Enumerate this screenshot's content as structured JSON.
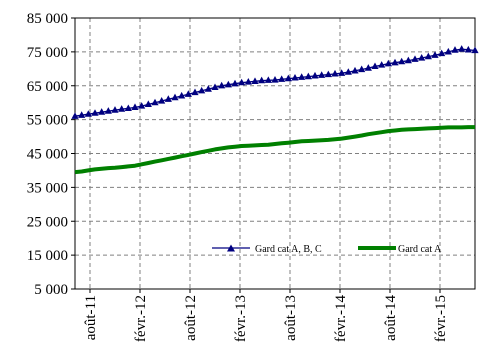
{
  "chart_data": {
    "type": "line",
    "grid": true,
    "ylim": [
      5000,
      85000
    ],
    "yticks": [
      5000,
      15000,
      25000,
      35000,
      45000,
      55000,
      65000,
      75000,
      85000
    ],
    "ytick_labels": [
      "5 000",
      "15 000",
      "25 000",
      "35 000",
      "45 000",
      "55 000",
      "65 000",
      "75 000",
      "85 000"
    ],
    "xtick_labels": [
      "août-11",
      "févr.-12",
      "août-12",
      "févr.-13",
      "août-13",
      "févr.-14",
      "août-14",
      "févr.-15",
      "août-15"
    ],
    "legend_position": "lower-right",
    "series": [
      {
        "name": "Gard cat A, B, C",
        "color": "#000080",
        "marker": "triangle",
        "values": [
          56000,
          56300,
          56600,
          56900,
          57200,
          57500,
          57800,
          58100,
          58300,
          58600,
          59000,
          59500,
          60000,
          60500,
          61000,
          61500,
          62000,
          62500,
          63000,
          63500,
          64000,
          64500,
          65000,
          65300,
          65600,
          65900,
          66100,
          66300,
          66500,
          66600,
          66700,
          66900,
          67100,
          67300,
          67500,
          67700,
          67900,
          68100,
          68300,
          68500,
          68700,
          69000,
          69400,
          69800,
          70200,
          70700,
          71100,
          71500,
          71800,
          72100,
          72400,
          72800,
          73200,
          73600,
          74000,
          74500,
          75000,
          75500,
          75800,
          75600,
          75400
        ]
      },
      {
        "name": "Gard cat A",
        "color": "#008000",
        "marker": "none",
        "values": [
          39500,
          39700,
          40000,
          40300,
          40500,
          40700,
          40800,
          41000,
          41200,
          41400,
          41800,
          42200,
          42600,
          43000,
          43400,
          43800,
          44200,
          44600,
          45000,
          45400,
          45800,
          46200,
          46500,
          46800,
          47000,
          47200,
          47300,
          47400,
          47500,
          47600,
          47800,
          48000,
          48200,
          48400,
          48600,
          48700,
          48800,
          48900,
          49000,
          49200,
          49400,
          49700,
          50000,
          50300,
          50700,
          51000,
          51300,
          51600,
          51800,
          52000,
          52100,
          52200,
          52300,
          52400,
          52500,
          52600,
          52700,
          52700,
          52700,
          52800,
          52800
        ]
      }
    ]
  }
}
